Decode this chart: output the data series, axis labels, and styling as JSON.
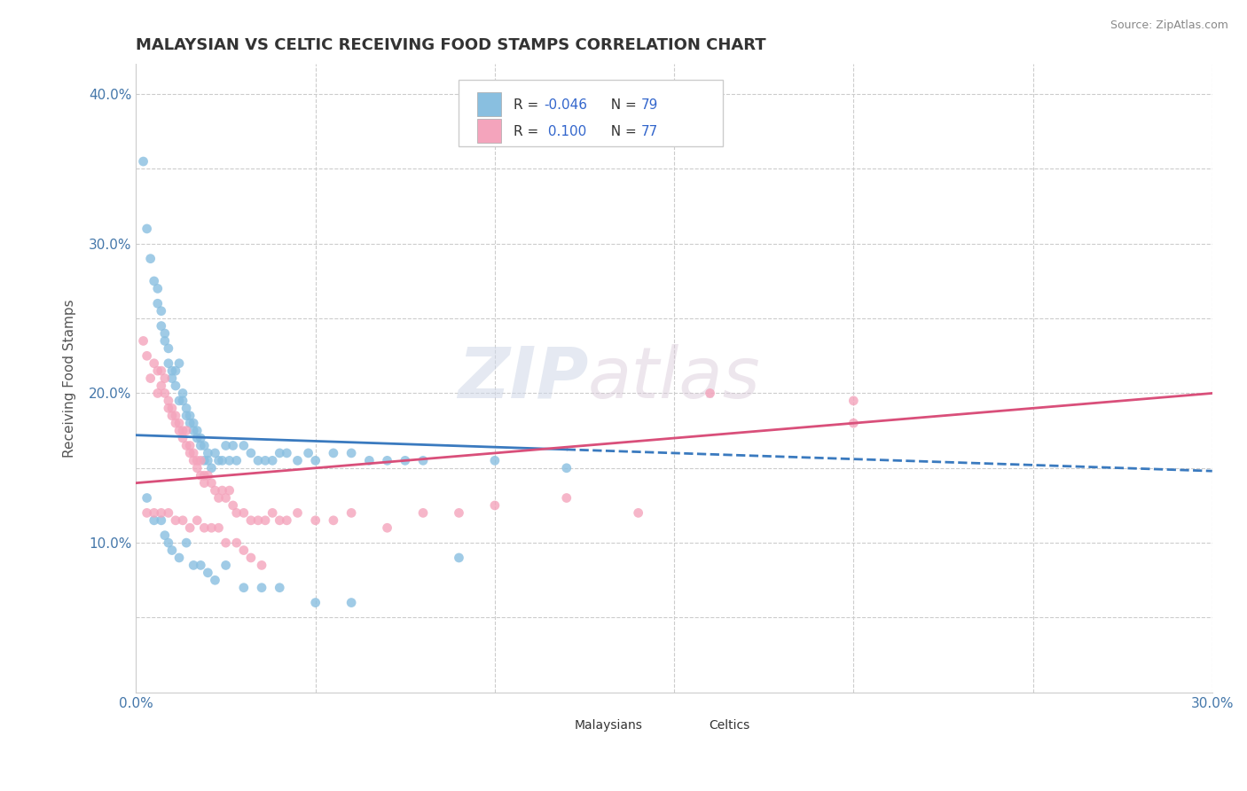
{
  "title": "MALAYSIAN VS CELTIC RECEIVING FOOD STAMPS CORRELATION CHART",
  "source": "Source: ZipAtlas.com",
  "ylabel": "Receiving Food Stamps",
  "xlim": [
    0.0,
    0.3
  ],
  "ylim": [
    0.0,
    0.42
  ],
  "x_ticks": [
    0.0,
    0.05,
    0.1,
    0.15,
    0.2,
    0.25,
    0.3
  ],
  "y_ticks": [
    0.0,
    0.05,
    0.1,
    0.15,
    0.2,
    0.25,
    0.3,
    0.35,
    0.4
  ],
  "background_color": "#ffffff",
  "grid_color": "#cccccc",
  "title_fontsize": 13,
  "legend_R1": "-0.046",
  "legend_N1": "79",
  "legend_R2": "0.100",
  "legend_N2": "77",
  "color_blue": "#89bfe0",
  "color_pink": "#f4a4bc",
  "trendline_blue": "#3a7abf",
  "trendline_pink": "#d94f7a",
  "legend_labels": [
    "Malaysians",
    "Celtics"
  ],
  "malaysian_x": [
    0.002,
    0.003,
    0.004,
    0.005,
    0.006,
    0.006,
    0.007,
    0.007,
    0.008,
    0.008,
    0.009,
    0.009,
    0.01,
    0.01,
    0.011,
    0.011,
    0.012,
    0.012,
    0.013,
    0.013,
    0.014,
    0.014,
    0.015,
    0.015,
    0.016,
    0.016,
    0.017,
    0.017,
    0.018,
    0.018,
    0.019,
    0.019,
    0.02,
    0.02,
    0.021,
    0.022,
    0.023,
    0.024,
    0.025,
    0.026,
    0.027,
    0.028,
    0.03,
    0.032,
    0.034,
    0.036,
    0.038,
    0.04,
    0.042,
    0.045,
    0.048,
    0.05,
    0.055,
    0.06,
    0.065,
    0.07,
    0.075,
    0.08,
    0.09,
    0.1,
    0.003,
    0.005,
    0.007,
    0.008,
    0.009,
    0.01,
    0.012,
    0.014,
    0.016,
    0.018,
    0.02,
    0.022,
    0.025,
    0.03,
    0.035,
    0.04,
    0.05,
    0.06,
    0.12
  ],
  "malaysian_y": [
    0.355,
    0.31,
    0.29,
    0.275,
    0.27,
    0.26,
    0.255,
    0.245,
    0.235,
    0.24,
    0.23,
    0.22,
    0.215,
    0.21,
    0.205,
    0.215,
    0.22,
    0.195,
    0.195,
    0.2,
    0.19,
    0.185,
    0.185,
    0.18,
    0.175,
    0.18,
    0.175,
    0.17,
    0.17,
    0.165,
    0.165,
    0.155,
    0.16,
    0.155,
    0.15,
    0.16,
    0.155,
    0.155,
    0.165,
    0.155,
    0.165,
    0.155,
    0.165,
    0.16,
    0.155,
    0.155,
    0.155,
    0.16,
    0.16,
    0.155,
    0.16,
    0.155,
    0.16,
    0.16,
    0.155,
    0.155,
    0.155,
    0.155,
    0.09,
    0.155,
    0.13,
    0.115,
    0.115,
    0.105,
    0.1,
    0.095,
    0.09,
    0.1,
    0.085,
    0.085,
    0.08,
    0.075,
    0.085,
    0.07,
    0.07,
    0.07,
    0.06,
    0.06,
    0.15
  ],
  "celtic_x": [
    0.002,
    0.003,
    0.004,
    0.005,
    0.006,
    0.006,
    0.007,
    0.007,
    0.008,
    0.008,
    0.009,
    0.009,
    0.01,
    0.01,
    0.011,
    0.011,
    0.012,
    0.012,
    0.013,
    0.013,
    0.014,
    0.014,
    0.015,
    0.015,
    0.016,
    0.016,
    0.017,
    0.017,
    0.018,
    0.018,
    0.019,
    0.019,
    0.02,
    0.021,
    0.022,
    0.023,
    0.024,
    0.025,
    0.026,
    0.027,
    0.028,
    0.03,
    0.032,
    0.034,
    0.036,
    0.038,
    0.04,
    0.042,
    0.045,
    0.05,
    0.055,
    0.06,
    0.07,
    0.08,
    0.09,
    0.1,
    0.12,
    0.14,
    0.16,
    0.2,
    0.003,
    0.005,
    0.007,
    0.009,
    0.011,
    0.013,
    0.015,
    0.017,
    0.019,
    0.021,
    0.023,
    0.025,
    0.028,
    0.03,
    0.032,
    0.035,
    0.2
  ],
  "celtic_y": [
    0.235,
    0.225,
    0.21,
    0.22,
    0.215,
    0.2,
    0.205,
    0.215,
    0.21,
    0.2,
    0.195,
    0.19,
    0.19,
    0.185,
    0.185,
    0.18,
    0.18,
    0.175,
    0.175,
    0.17,
    0.175,
    0.165,
    0.165,
    0.16,
    0.155,
    0.16,
    0.155,
    0.15,
    0.155,
    0.145,
    0.145,
    0.14,
    0.145,
    0.14,
    0.135,
    0.13,
    0.135,
    0.13,
    0.135,
    0.125,
    0.12,
    0.12,
    0.115,
    0.115,
    0.115,
    0.12,
    0.115,
    0.115,
    0.12,
    0.115,
    0.115,
    0.12,
    0.11,
    0.12,
    0.12,
    0.125,
    0.13,
    0.12,
    0.2,
    0.195,
    0.12,
    0.12,
    0.12,
    0.12,
    0.115,
    0.115,
    0.11,
    0.115,
    0.11,
    0.11,
    0.11,
    0.1,
    0.1,
    0.095,
    0.09,
    0.085,
    0.18
  ]
}
